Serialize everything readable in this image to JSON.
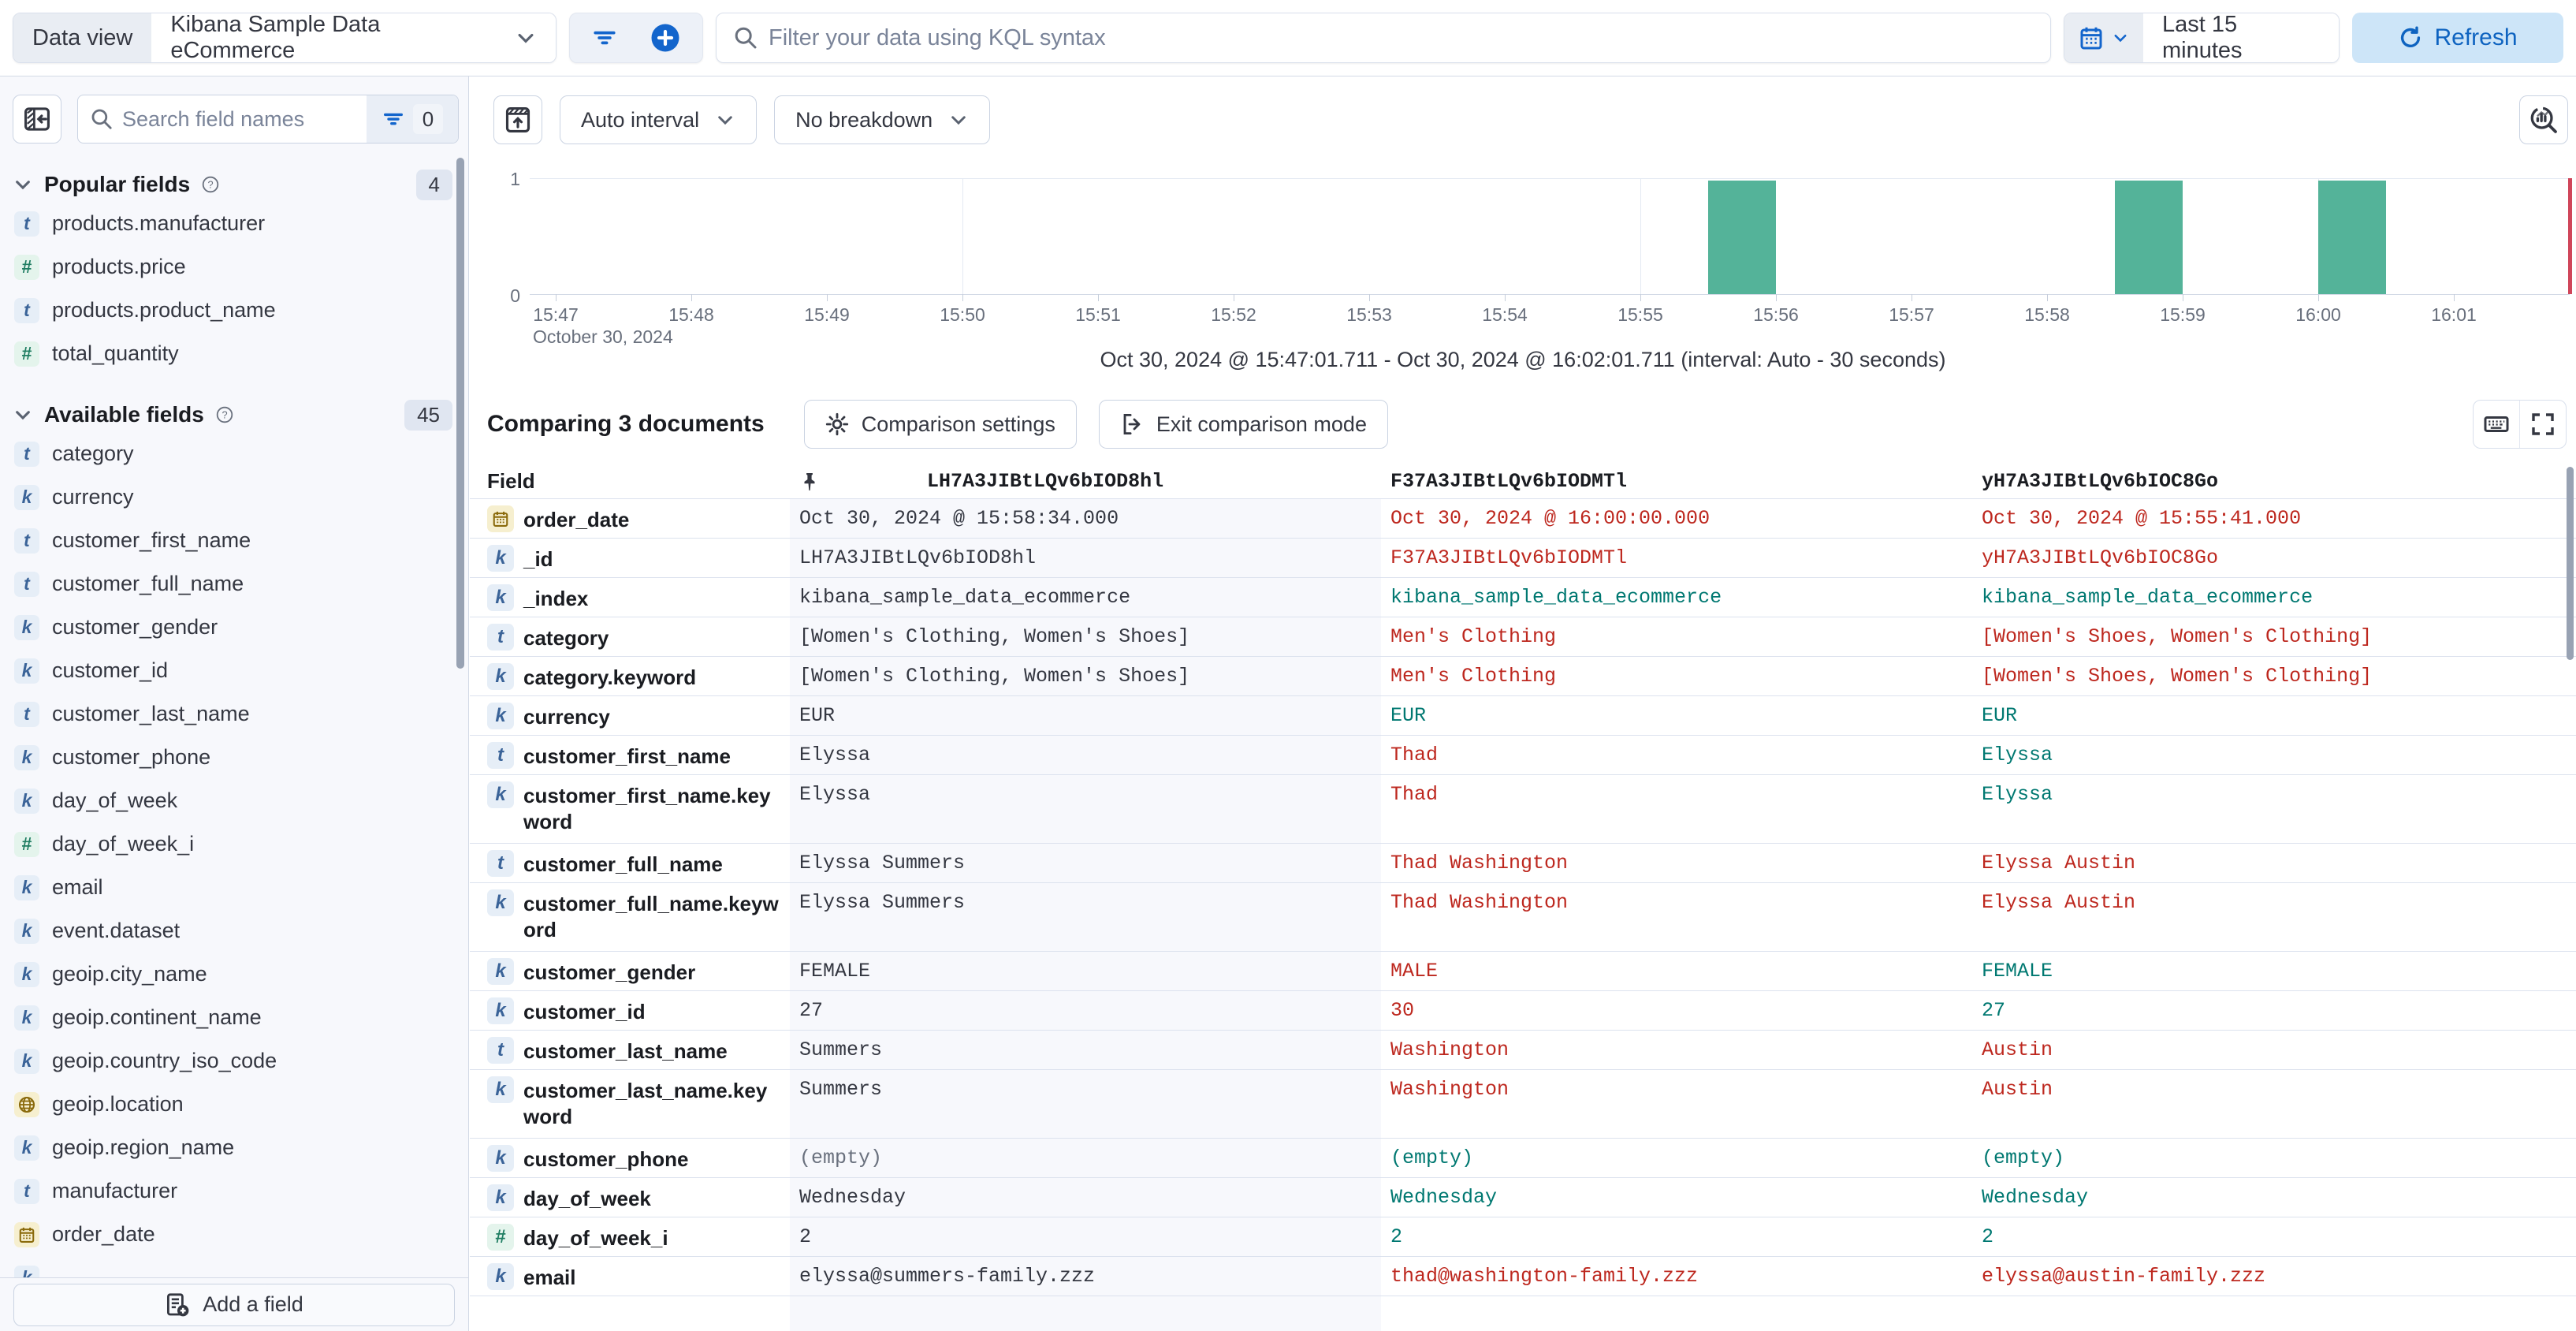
{
  "colors": {
    "accent": "#1365CC",
    "diff": "#BD271E",
    "same": "#007871",
    "bar": "#54B399"
  },
  "topbar": {
    "data_view_label": "Data view",
    "data_view_value": "Kibana Sample Data eCommerce",
    "kql_placeholder": "Filter your data using KQL syntax",
    "time_range": "Last 15 minutes",
    "refresh_label": "Refresh"
  },
  "sidebar": {
    "search_placeholder": "Search field names",
    "filter_count": "0",
    "add_field_label": "Add a field",
    "sections": [
      {
        "label": "Popular fields",
        "count": "4",
        "items": [
          {
            "type": "t",
            "name": "products.manufacturer"
          },
          {
            "type": "n",
            "name": "products.price"
          },
          {
            "type": "t",
            "name": "products.product_name"
          },
          {
            "type": "n",
            "name": "total_quantity"
          }
        ]
      },
      {
        "label": "Available fields",
        "count": "45",
        "items": [
          {
            "type": "t",
            "name": "category"
          },
          {
            "type": "k",
            "name": "currency"
          },
          {
            "type": "t",
            "name": "customer_first_name"
          },
          {
            "type": "t",
            "name": "customer_full_name"
          },
          {
            "type": "k",
            "name": "customer_gender"
          },
          {
            "type": "k",
            "name": "customer_id"
          },
          {
            "type": "t",
            "name": "customer_last_name"
          },
          {
            "type": "k",
            "name": "customer_phone"
          },
          {
            "type": "k",
            "name": "day_of_week"
          },
          {
            "type": "n",
            "name": "day_of_week_i"
          },
          {
            "type": "k",
            "name": "email"
          },
          {
            "type": "k",
            "name": "event.dataset"
          },
          {
            "type": "k",
            "name": "geoip.city_name"
          },
          {
            "type": "k",
            "name": "geoip.continent_name"
          },
          {
            "type": "k",
            "name": "geoip.country_iso_code"
          },
          {
            "type": "geo",
            "name": "geoip.location"
          },
          {
            "type": "k",
            "name": "geoip.region_name"
          },
          {
            "type": "t",
            "name": "manufacturer"
          },
          {
            "type": "date",
            "name": "order_date"
          }
        ]
      }
    ]
  },
  "chart": {
    "interval_label": "Auto interval",
    "breakdown_label": "No breakdown",
    "y_ticks": [
      "1",
      "0"
    ],
    "x_ticks": [
      "15:47",
      "15:48",
      "15:49",
      "15:50",
      "15:51",
      "15:52",
      "15:53",
      "15:54",
      "15:55",
      "15:56",
      "15:57",
      "15:58",
      "15:59",
      "16:00",
      "16:01"
    ],
    "x_subtitle": "October 30, 2024",
    "caption": "Oct 30, 2024 @ 15:47:01.711 - Oct 30, 2024 @ 16:02:01.711 (interval: Auto - 30 seconds)"
  },
  "chart_data": {
    "type": "bar",
    "title": "Document count histogram",
    "x": [
      "15:55:30",
      "15:58:30",
      "16:00:00"
    ],
    "values": [
      1,
      1,
      1
    ],
    "interval_seconds": 30,
    "xlabel": "October 30, 2024",
    "ylabel": "",
    "ylim": [
      0,
      1
    ],
    "x_axis_ticks": [
      "15:47",
      "15:48",
      "15:49",
      "15:50",
      "15:51",
      "15:52",
      "15:53",
      "15:54",
      "15:55",
      "15:56",
      "15:57",
      "15:58",
      "15:59",
      "16:00",
      "16:01"
    ],
    "legend": "off",
    "grid": "major 5-minute vertical lines"
  },
  "comparison": {
    "title": "Comparing 3 documents",
    "settings_label": "Comparison settings",
    "exit_label": "Exit comparison mode"
  },
  "table": {
    "field_header": "Field",
    "columns": [
      "LH7A3JIBtLQv6bIOD8hl",
      "F37A3JIBtLQv6bIODMTl",
      "yH7A3JIBtLQv6bIOC8Go"
    ],
    "rows": [
      {
        "icon": "date",
        "field": "order_date",
        "cells": [
          {
            "text": "Oct 30, 2024 @ 15:58:34.000",
            "tone": "base"
          },
          {
            "text": "Oct 30, 2024 @ 16:00:00.000",
            "tone": "diff"
          },
          {
            "text": "Oct 30, 2024 @ 15:55:41.000",
            "tone": "diff"
          }
        ]
      },
      {
        "icon": "k",
        "field": "_id",
        "cells": [
          {
            "text": "LH7A3JIBtLQv6bIOD8hl",
            "tone": "base"
          },
          {
            "text": "F37A3JIBtLQv6bIODMTl",
            "tone": "diff"
          },
          {
            "text": "yH7A3JIBtLQv6bIOC8Go",
            "tone": "diff"
          }
        ]
      },
      {
        "icon": "k",
        "field": "_index",
        "cells": [
          {
            "text": "kibana_sample_data_ecommerce",
            "tone": "base"
          },
          {
            "text": "kibana_sample_data_ecommerce",
            "tone": "same"
          },
          {
            "text": "kibana_sample_data_ecommerce",
            "tone": "same"
          }
        ]
      },
      {
        "icon": "t",
        "field": "category",
        "cells": [
          {
            "text": "[Women's Clothing, Women's Shoes]",
            "tone": "base"
          },
          {
            "text": "Men's Clothing",
            "tone": "diff"
          },
          {
            "text": "[Women's Shoes, Women's Clothing]",
            "tone": "diff"
          }
        ]
      },
      {
        "icon": "k",
        "field": "category.keyword",
        "cells": [
          {
            "text": "[Women's Clothing, Women's Shoes]",
            "tone": "base"
          },
          {
            "text": "Men's Clothing",
            "tone": "diff"
          },
          {
            "text": "[Women's Shoes, Women's Clothing]",
            "tone": "diff"
          }
        ]
      },
      {
        "icon": "k",
        "field": "currency",
        "cells": [
          {
            "text": "EUR",
            "tone": "base"
          },
          {
            "text": "EUR",
            "tone": "same"
          },
          {
            "text": "EUR",
            "tone": "same"
          }
        ]
      },
      {
        "icon": "t",
        "field": "customer_first_name",
        "cells": [
          {
            "text": "Elyssa",
            "tone": "base"
          },
          {
            "text": "Thad",
            "tone": "diff"
          },
          {
            "text": "Elyssa",
            "tone": "same"
          }
        ]
      },
      {
        "icon": "k",
        "field": "customer_first_name.keyword",
        "wrap": true,
        "cells": [
          {
            "text": "Elyssa",
            "tone": "base"
          },
          {
            "text": "Thad",
            "tone": "diff"
          },
          {
            "text": "Elyssa",
            "tone": "same"
          }
        ]
      },
      {
        "icon": "t",
        "field": "customer_full_name",
        "cells": [
          {
            "text": "Elyssa Summers",
            "tone": "base"
          },
          {
            "text": "Thad Washington",
            "tone": "diff"
          },
          {
            "text": "Elyssa Austin",
            "tone": "diff"
          }
        ]
      },
      {
        "icon": "k",
        "field": "customer_full_name.keyword",
        "wrap": true,
        "cells": [
          {
            "text": "Elyssa Summers",
            "tone": "base"
          },
          {
            "text": "Thad Washington",
            "tone": "diff"
          },
          {
            "text": "Elyssa Austin",
            "tone": "diff"
          }
        ]
      },
      {
        "icon": "k",
        "field": "customer_gender",
        "cells": [
          {
            "text": "FEMALE",
            "tone": "base"
          },
          {
            "text": "MALE",
            "tone": "diff"
          },
          {
            "text": "FEMALE",
            "tone": "same"
          }
        ]
      },
      {
        "icon": "k",
        "field": "customer_id",
        "cells": [
          {
            "text": "27",
            "tone": "base"
          },
          {
            "text": "30",
            "tone": "diff"
          },
          {
            "text": "27",
            "tone": "same"
          }
        ]
      },
      {
        "icon": "t",
        "field": "customer_last_name",
        "cells": [
          {
            "text": "Summers",
            "tone": "base"
          },
          {
            "text": "Washington",
            "tone": "diff"
          },
          {
            "text": "Austin",
            "tone": "diff"
          }
        ]
      },
      {
        "icon": "k",
        "field": "customer_last_name.keyword",
        "wrap": true,
        "cells": [
          {
            "text": "Summers",
            "tone": "base"
          },
          {
            "text": "Washington",
            "tone": "diff"
          },
          {
            "text": "Austin",
            "tone": "diff"
          }
        ]
      },
      {
        "icon": "k",
        "field": "customer_phone",
        "cells": [
          {
            "text": "(empty)",
            "tone": "muted"
          },
          {
            "text": "(empty)",
            "tone": "same"
          },
          {
            "text": "(empty)",
            "tone": "same"
          }
        ]
      },
      {
        "icon": "k",
        "field": "day_of_week",
        "cells": [
          {
            "text": "Wednesday",
            "tone": "base"
          },
          {
            "text": "Wednesday",
            "tone": "same"
          },
          {
            "text": "Wednesday",
            "tone": "same"
          }
        ]
      },
      {
        "icon": "n",
        "field": "day_of_week_i",
        "cells": [
          {
            "text": "2",
            "tone": "base"
          },
          {
            "text": "2",
            "tone": "same"
          },
          {
            "text": "2",
            "tone": "same"
          }
        ]
      },
      {
        "icon": "k",
        "field": "email",
        "cells": [
          {
            "text": "elyssa@summers-family.zzz",
            "tone": "base"
          },
          {
            "text": "thad@washington-family.zzz",
            "tone": "diff"
          },
          {
            "text": "elyssa@austin-family.zzz",
            "tone": "diff"
          }
        ]
      }
    ]
  }
}
